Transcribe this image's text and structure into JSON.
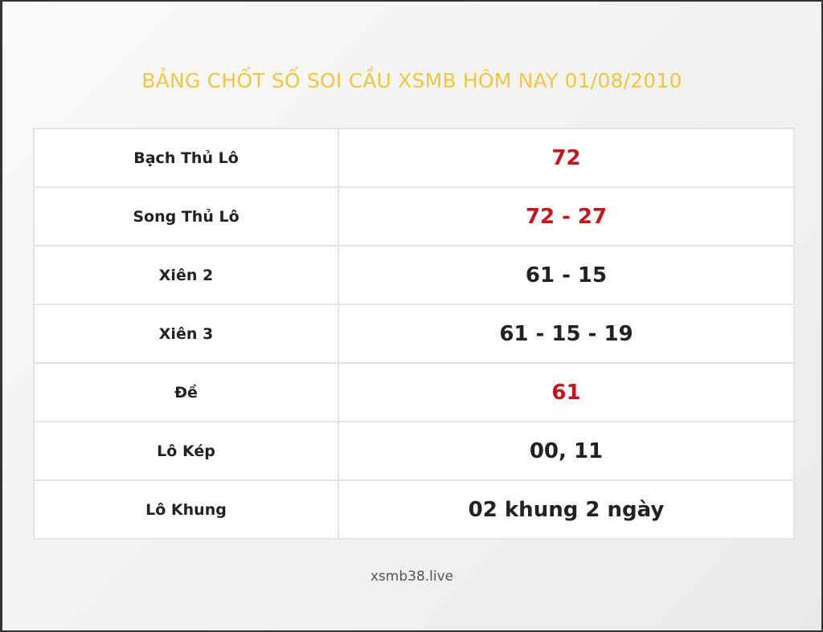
{
  "title": "BẢNG CHỐT SỐ SOI CẦU XSMB HÔM NAY 01/08/2010",
  "rows": [
    {
      "label": "Bạch Thủ Lô",
      "value": "72",
      "highlight": true
    },
    {
      "label": "Song Thủ Lô",
      "value": "72 - 27",
      "highlight": true
    },
    {
      "label": "Xiên 2",
      "value": "61 - 15",
      "highlight": false
    },
    {
      "label": "Xiên 3",
      "value": "61 - 15 - 19",
      "highlight": false
    },
    {
      "label": "Đề",
      "value": "61",
      "highlight": true
    },
    {
      "label": "Lô Kép",
      "value": "00, 11",
      "highlight": false
    },
    {
      "label": "Lô Khung",
      "value": "02 khung 2 ngày",
      "highlight": false
    }
  ],
  "footer": "xsmb38.live",
  "colors": {
    "title": "#f3c53f",
    "highlight": "#c4161c",
    "text": "#222222"
  }
}
